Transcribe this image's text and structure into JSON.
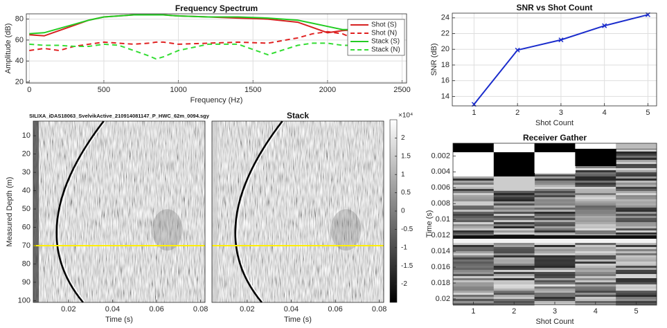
{
  "chart_data": [
    {
      "type": "line",
      "title": "Frequency Spectrum",
      "xlabel": "Frequency (Hz)",
      "ylabel": "Amplitude (dB)",
      "x": [
        0,
        100,
        200,
        300,
        400,
        500,
        600,
        700,
        800,
        850,
        900,
        1000,
        1200,
        1400,
        1600,
        1800,
        1900,
        2000,
        2100,
        2200,
        2300,
        2400,
        2500
      ],
      "series": [
        {
          "name": "Shot (S)",
          "color": "#d62020",
          "style": "solid",
          "values": [
            65,
            64,
            69,
            74,
            79,
            82,
            83,
            84,
            84,
            84,
            84,
            83,
            82,
            81,
            80,
            77,
            72,
            67,
            69,
            70,
            null,
            null,
            null
          ]
        },
        {
          "name": "Shot (N)",
          "color": "#e02020",
          "style": "dashed",
          "values": [
            50,
            52,
            50,
            54,
            56,
            58,
            57,
            56,
            57,
            58,
            58,
            56,
            57,
            58,
            57,
            62,
            66,
            68,
            66,
            60,
            null,
            null,
            null
          ]
        },
        {
          "name": "Stack (S)",
          "color": "#22cc22",
          "style": "solid",
          "values": [
            66,
            67,
            71,
            75,
            79,
            82,
            83,
            84,
            84,
            84,
            84,
            83,
            82,
            82,
            81,
            79,
            76,
            73,
            70,
            70,
            70,
            69,
            68
          ]
        },
        {
          "name": "Stack (N)",
          "color": "#33dd33",
          "style": "dashed",
          "values": [
            56,
            55,
            55,
            54,
            54,
            56,
            55,
            50,
            45,
            42,
            44,
            50,
            56,
            56,
            46,
            55,
            57,
            57,
            55,
            55,
            56,
            58,
            59
          ]
        }
      ],
      "xlim": [
        -20,
        2530
      ],
      "ylim": [
        19,
        85
      ],
      "xticks": [
        0,
        500,
        1000,
        1500,
        2000,
        2500
      ],
      "yticks": [
        20,
        40,
        60,
        80
      ],
      "grid": true,
      "legend": "upper right"
    },
    {
      "type": "line",
      "title": "SNR vs Shot Count",
      "xlabel": "Shot Count",
      "ylabel": "SNR (dB)",
      "x": [
        1,
        2,
        3,
        4,
        5
      ],
      "series": [
        {
          "color": "#1a2ccc",
          "style": "solid",
          "marker": "x",
          "values": [
            13,
            19.9,
            21.2,
            23,
            24.4
          ]
        }
      ],
      "xlim": [
        0.5,
        5.2
      ],
      "ylim": [
        12.8,
        24.6
      ],
      "xticks": [
        1,
        2,
        3,
        4,
        5
      ],
      "yticks": [
        14,
        16,
        18,
        20,
        22,
        24
      ],
      "grid": true
    },
    {
      "type": "heatmap",
      "title": "SILIXA_iDAS18063_SvelvikActive_210914081147_P_HWC_62m_0094.sgy",
      "xlabel": "Time (s)",
      "ylabel": "Measured Depth (m)",
      "xlim": [
        0.004,
        0.082
      ],
      "ylim": [
        101,
        2
      ],
      "xticks": [
        0.02,
        0.04,
        0.06,
        0.08
      ],
      "yticks": [
        10,
        20,
        30,
        40,
        50,
        60,
        70,
        80,
        90,
        100
      ],
      "colormap": "gray",
      "hline": {
        "value": 70,
        "color": "#ffee00"
      }
    },
    {
      "type": "heatmap",
      "title": "Stack",
      "xlabel": "Time (s)",
      "xlim": [
        0.004,
        0.082
      ],
      "ylim": [
        101,
        2
      ],
      "xticks": [
        0.02,
        0.04,
        0.06,
        0.08
      ],
      "colormap": "gray",
      "hline": {
        "value": 70,
        "color": "#ffee00"
      },
      "colorbar": {
        "lim": [
          -2.5,
          2.5
        ],
        "ticks": [
          -2,
          -1.5,
          -1,
          -0.5,
          0,
          0.5,
          1,
          1.5,
          2
        ],
        "label": "×10⁴"
      }
    },
    {
      "type": "heatmap",
      "title": "Receiver Gather",
      "xlabel": "Shot Count",
      "ylabel": "Time (s)",
      "xlim": [
        0.5,
        5.5
      ],
      "ylim": [
        0.0207,
        0.0004
      ],
      "xticks": [
        1,
        2,
        3,
        4,
        5
      ],
      "yticks": [
        0.002,
        0.004,
        0.006,
        0.008,
        0.01,
        0.012,
        0.014,
        0.016,
        0.018,
        0.02
      ],
      "colormap": "gray"
    }
  ]
}
